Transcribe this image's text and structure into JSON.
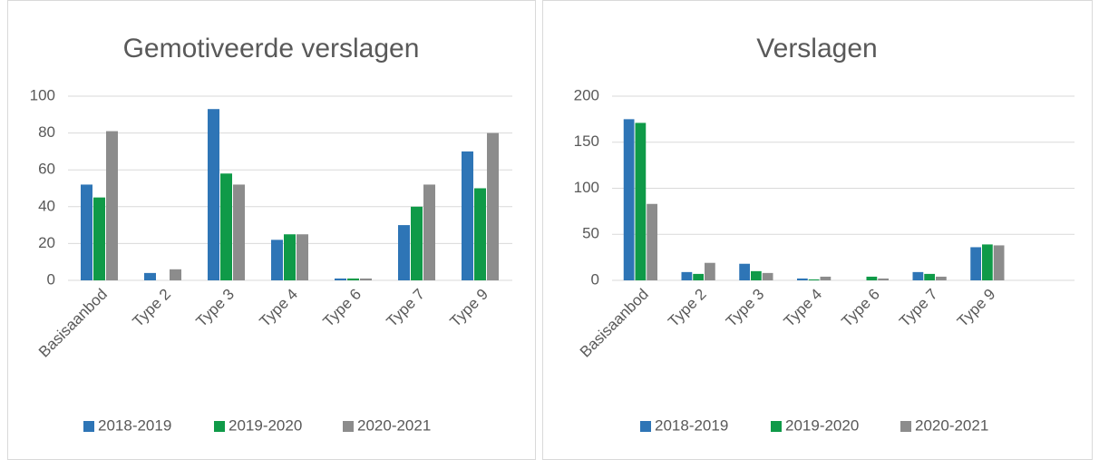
{
  "chart_data": [
    {
      "type": "bar",
      "title": "Gemotiveerde verslagen",
      "categories": [
        "Basisaanbod",
        "Type 2",
        "Type 3",
        "Type 4",
        "Type 6",
        "Type 7",
        "Type 9"
      ],
      "series": [
        {
          "name": "2018-2019",
          "color": "#2e75b6",
          "values": [
            52,
            4,
            93,
            22,
            1,
            30,
            70
          ]
        },
        {
          "name": "2019-2020",
          "color": "#0f9a48",
          "values": [
            45,
            0,
            58,
            25,
            1,
            40,
            50
          ]
        },
        {
          "name": "2020-2021",
          "color": "#8c8c8c",
          "values": [
            81,
            6,
            52,
            25,
            1,
            52,
            80
          ]
        }
      ],
      "ylim": [
        0,
        100
      ],
      "yticks": [
        0,
        20,
        40,
        60,
        80,
        100
      ],
      "grid": true,
      "legend": "bottom"
    },
    {
      "type": "bar",
      "title": "Verslagen",
      "categories": [
        "Basisaanbod",
        "Type 2",
        "Type 3",
        "Type 4",
        "Type 6",
        "Type 7",
        "Type 9",
        null
      ],
      "series": [
        {
          "name": "2018-2019",
          "color": "#2e75b6",
          "values": [
            175,
            9,
            18,
            2,
            0,
            9,
            36,
            null
          ]
        },
        {
          "name": "2019-2020",
          "color": "#0f9a48",
          "values": [
            171,
            7,
            10,
            1,
            4,
            7,
            39,
            null
          ]
        },
        {
          "name": "2020-2021",
          "color": "#8c8c8c",
          "values": [
            83,
            19,
            8,
            4,
            2,
            4,
            38,
            null
          ]
        }
      ],
      "ylim": [
        0,
        200
      ],
      "yticks": [
        0,
        50,
        100,
        150,
        200
      ],
      "grid": true,
      "legend": "bottom"
    }
  ]
}
